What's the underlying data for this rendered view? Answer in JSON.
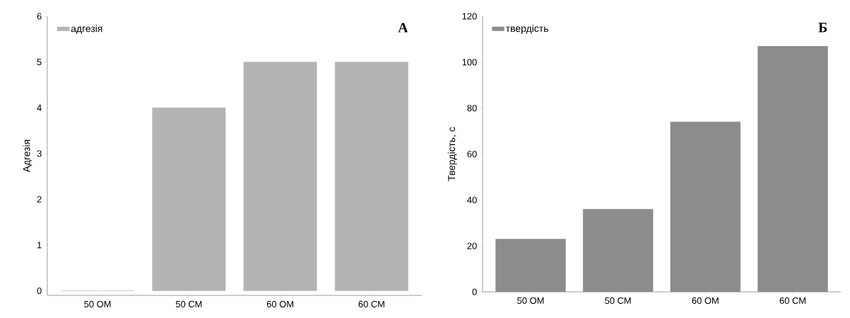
{
  "chart_data": [
    {
      "type": "bar",
      "categories": [
        "50 ОМ",
        "50 СМ",
        "60 ОМ",
        "60 СМ"
      ],
      "ylabel": "Адгезія",
      "series": [
        {
          "name": "адгезія",
          "color": "#b4b4b4",
          "values": [
            0,
            4,
            5,
            5
          ]
        }
      ],
      "ylim": [
        -0.1,
        6
      ],
      "yticks": [
        0,
        1,
        2,
        3,
        4,
        5,
        6
      ],
      "grid": false,
      "legend": "top left",
      "annotations": [
        "А"
      ]
    },
    {
      "type": "bar",
      "categories": [
        "50 ОМ",
        "50 СМ",
        "60 ОМ",
        "60 СМ"
      ],
      "ylabel": "Твердість, с",
      "series": [
        {
          "name": "твердість",
          "color": "#8c8c8c",
          "values": [
            23,
            36,
            74,
            107
          ]
        }
      ],
      "ylim": [
        0,
        120
      ],
      "yticks": [
        0,
        20,
        40,
        60,
        80,
        100,
        120
      ],
      "grid": false,
      "legend": "top left",
      "annotations": [
        "Б"
      ]
    }
  ]
}
